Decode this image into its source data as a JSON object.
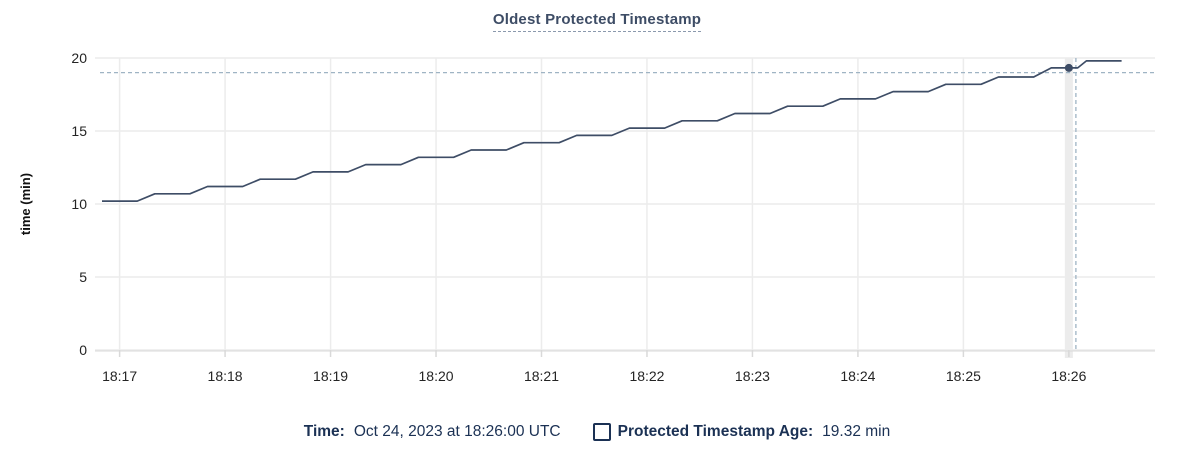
{
  "title": "Oldest Protected Timestamp",
  "ylabel": "time (min)",
  "tooltip": {
    "time_label": "Time:",
    "time_value": "Oct 24, 2023 at 18:26:00 UTC",
    "series_label": "Protected Timestamp Age:",
    "series_value": "19.32 min"
  },
  "colors": {
    "line": "#3e4d66",
    "grid": "#ececec",
    "hover_band": "#ececec",
    "axis_line": "#d9d9d9",
    "crosshair": "#9fb4c4",
    "tick_text": "#242424",
    "legend_text": "#1b3154",
    "background": "#ffffff"
  },
  "chart_data": {
    "type": "line",
    "title": "Oldest Protected Timestamp",
    "xlabel": "",
    "ylabel": "time (min)",
    "ylim": [
      0,
      20
    ],
    "yticks": [
      0,
      5,
      10,
      15,
      20
    ],
    "xticks": [
      "18:17",
      "18:18",
      "18:19",
      "18:20",
      "18:21",
      "18:22",
      "18:23",
      "18:24",
      "18:25",
      "18:26"
    ],
    "x_domain": [
      "18:16:46",
      "18:26:49"
    ],
    "grid": true,
    "legend_position": "bottom",
    "series": [
      {
        "name": "Protected Timestamp Age",
        "unit": "min",
        "points": [
          [
            "18:16:50",
            10.2
          ],
          [
            "18:17:00",
            10.2
          ],
          [
            "18:17:10",
            10.2
          ],
          [
            "18:17:20",
            10.7
          ],
          [
            "18:17:30",
            10.7
          ],
          [
            "18:17:40",
            10.7
          ],
          [
            "18:17:50",
            11.2
          ],
          [
            "18:18:00",
            11.2
          ],
          [
            "18:18:10",
            11.2
          ],
          [
            "18:18:20",
            11.7
          ],
          [
            "18:18:30",
            11.7
          ],
          [
            "18:18:40",
            11.7
          ],
          [
            "18:18:50",
            12.2
          ],
          [
            "18:19:00",
            12.2
          ],
          [
            "18:19:10",
            12.2
          ],
          [
            "18:19:20",
            12.7
          ],
          [
            "18:19:30",
            12.7
          ],
          [
            "18:19:40",
            12.7
          ],
          [
            "18:19:50",
            13.2
          ],
          [
            "18:20:00",
            13.2
          ],
          [
            "18:20:10",
            13.2
          ],
          [
            "18:20:20",
            13.7
          ],
          [
            "18:20:30",
            13.7
          ],
          [
            "18:20:40",
            13.7
          ],
          [
            "18:20:50",
            14.2
          ],
          [
            "18:21:00",
            14.2
          ],
          [
            "18:21:10",
            14.2
          ],
          [
            "18:21:20",
            14.7
          ],
          [
            "18:21:30",
            14.7
          ],
          [
            "18:21:40",
            14.7
          ],
          [
            "18:21:50",
            15.2
          ],
          [
            "18:22:00",
            15.2
          ],
          [
            "18:22:10",
            15.2
          ],
          [
            "18:22:20",
            15.7
          ],
          [
            "18:22:30",
            15.7
          ],
          [
            "18:22:40",
            15.7
          ],
          [
            "18:22:50",
            16.2
          ],
          [
            "18:23:00",
            16.2
          ],
          [
            "18:23:10",
            16.2
          ],
          [
            "18:23:20",
            16.7
          ],
          [
            "18:23:30",
            16.7
          ],
          [
            "18:23:40",
            16.7
          ],
          [
            "18:23:50",
            17.2
          ],
          [
            "18:24:00",
            17.2
          ],
          [
            "18:24:10",
            17.2
          ],
          [
            "18:24:20",
            17.7
          ],
          [
            "18:24:30",
            17.7
          ],
          [
            "18:24:40",
            17.7
          ],
          [
            "18:24:50",
            18.2
          ],
          [
            "18:25:00",
            18.2
          ],
          [
            "18:25:10",
            18.2
          ],
          [
            "18:25:20",
            18.7
          ],
          [
            "18:25:30",
            18.7
          ],
          [
            "18:25:40",
            18.7
          ],
          [
            "18:25:50",
            19.32
          ],
          [
            "18:26:00",
            19.32
          ],
          [
            "18:26:05",
            19.32
          ],
          [
            "18:26:10",
            19.8
          ],
          [
            "18:26:20",
            19.8
          ],
          [
            "18:26:30",
            19.8
          ]
        ]
      }
    ],
    "highlight_point": {
      "time": "18:26:00",
      "value": 19.32
    },
    "crosshair": {
      "time": "18:26:04",
      "value": 19.0
    }
  }
}
